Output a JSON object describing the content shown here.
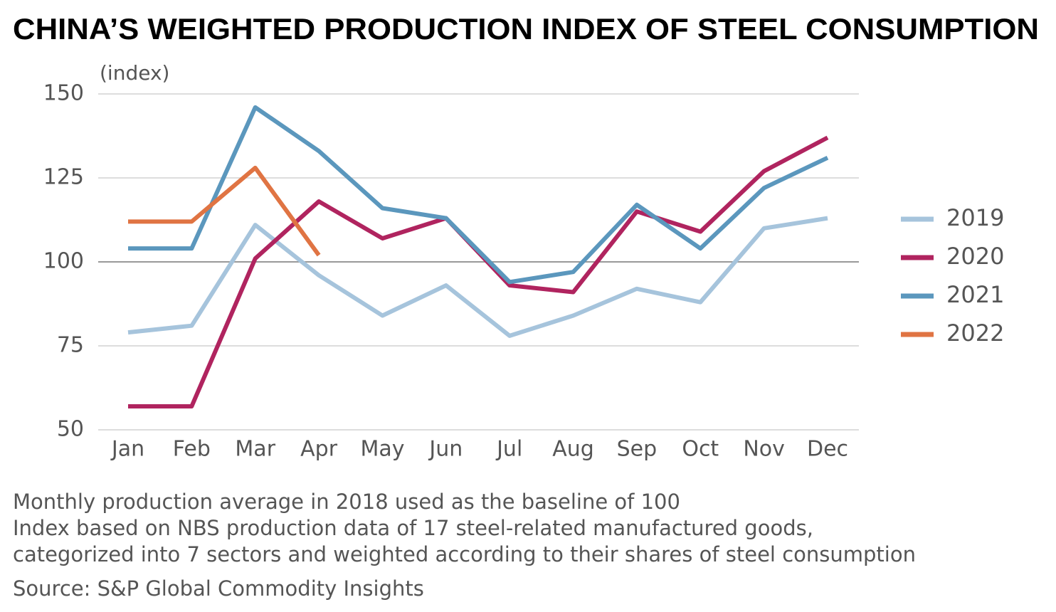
{
  "chart_data": {
    "type": "line",
    "title": "CHINA’S WEIGHTED PRODUCTION INDEX OF STEEL CONSUMPTION",
    "y_label": "(index)",
    "categories": [
      "Jan",
      "Feb",
      "Mar",
      "Apr",
      "May",
      "Jun",
      "Jul",
      "Aug",
      "Sep",
      "Oct",
      "Nov",
      "Dec"
    ],
    "series": [
      {
        "name": "2019",
        "color": "#a6c4dc",
        "values": [
          79,
          81,
          111,
          96,
          84,
          93,
          78,
          84,
          92,
          88,
          110,
          113
        ]
      },
      {
        "name": "2020",
        "color": "#b0245f",
        "values": [
          57,
          57,
          101,
          118,
          107,
          113,
          93,
          91,
          115,
          109,
          127,
          137
        ]
      },
      {
        "name": "2021",
        "color": "#5b97bd",
        "values": [
          104,
          104,
          146,
          133,
          116,
          113,
          94,
          97,
          117,
          104,
          122,
          131
        ]
      },
      {
        "name": "2022",
        "color": "#e07443",
        "values": [
          112,
          112,
          128,
          102,
          null,
          null,
          null,
          null,
          null,
          null,
          null,
          null
        ]
      }
    ],
    "ylim": [
      50,
      150
    ],
    "yticks": [
      50,
      75,
      100,
      125,
      150
    ],
    "grid": true,
    "baseline": 100,
    "legend": "right",
    "notes": [
      "Monthly production average in 2018 used as the baseline of 100",
      "Index based on NBS production data of 17 steel-related manufactured goods,",
      "categorized into 7 sectors and weighted according to their shares of steel consumption"
    ],
    "source": "Source: S&P Global Commodity Insights"
  }
}
